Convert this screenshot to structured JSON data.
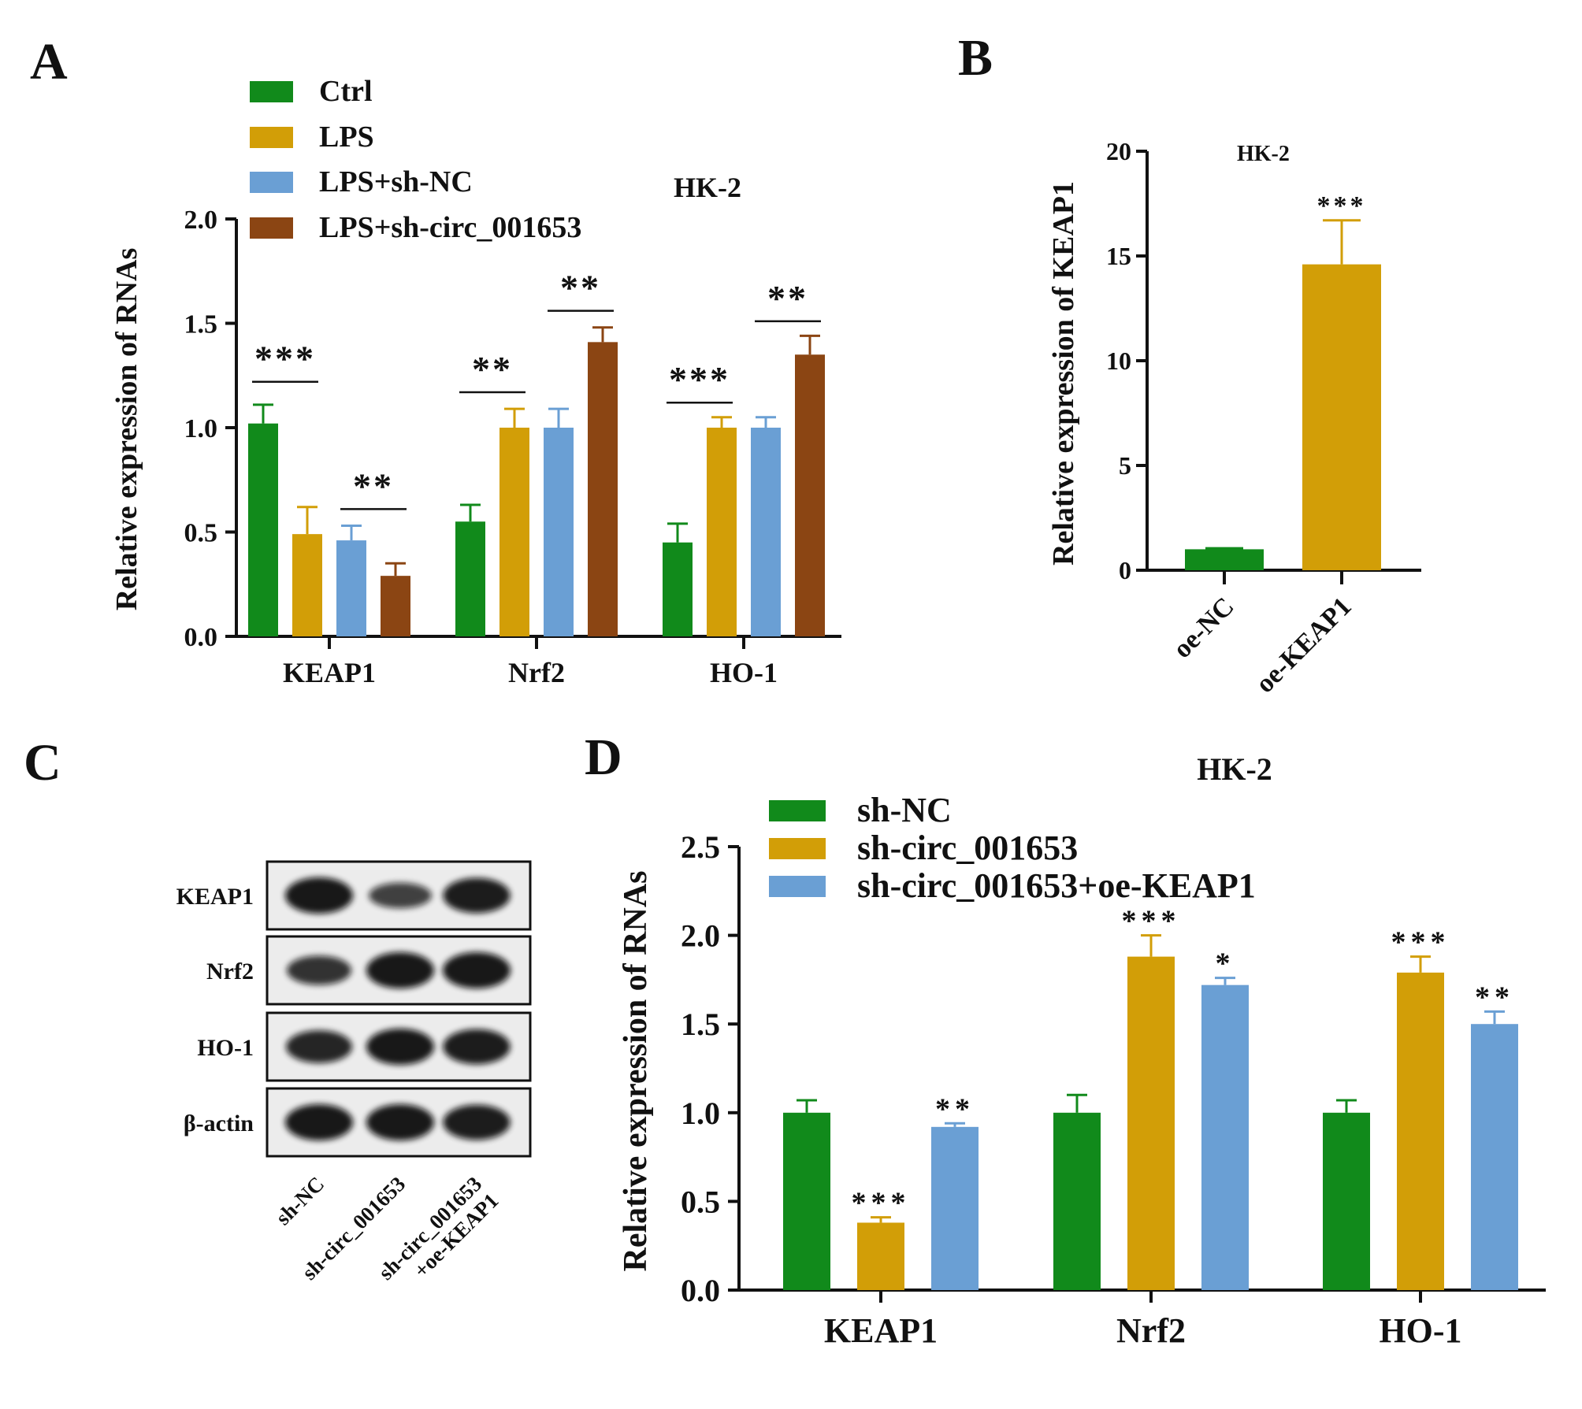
{
  "colors": {
    "ctrl": "#118A1B",
    "lps": "#D29E07",
    "shnc_blue": "#6A9FD4",
    "brown": "#8B4513",
    "axis": "#111111"
  },
  "panels": {
    "a": {
      "letter": "A"
    },
    "b": {
      "letter": "B"
    },
    "c": {
      "letter": "C"
    },
    "d": {
      "letter": "D"
    }
  },
  "chart_data": [
    {
      "panel": "A",
      "type": "bar",
      "title": "HK-2",
      "ylabel": "Relative expression of RNAs",
      "xlabel": "",
      "ylim": [
        0,
        2.0
      ],
      "yticks": [
        "0.0",
        "0.5",
        "1.0",
        "1.5",
        "2.0"
      ],
      "categories": [
        "KEAP1",
        "Nrf2",
        "HO-1"
      ],
      "legend_position": "top-left",
      "series": [
        {
          "name": "Ctrl",
          "color": "#118A1B",
          "values": [
            1.02,
            0.55,
            0.45
          ],
          "errors": [
            0.09,
            0.08,
            0.09
          ]
        },
        {
          "name": "LPS",
          "color": "#D29E07",
          "values": [
            0.49,
            1.0,
            1.0
          ],
          "errors": [
            0.13,
            0.09,
            0.05
          ]
        },
        {
          "name": "LPS+sh-NC",
          "color": "#6A9FD4",
          "values": [
            0.46,
            1.0,
            1.0
          ],
          "errors": [
            0.07,
            0.09,
            0.05
          ]
        },
        {
          "name": "LPS+sh-circ_001653",
          "color": "#8B4513",
          "values": [
            0.29,
            1.41,
            1.35
          ],
          "errors": [
            0.06,
            0.07,
            0.09
          ]
        }
      ],
      "significance": [
        {
          "category": 0,
          "from": 0,
          "to": 1,
          "label": "***",
          "level": 1.22
        },
        {
          "category": 0,
          "from": 2,
          "to": 3,
          "label": "**",
          "level": 0.61
        },
        {
          "category": 1,
          "from": 0,
          "to": 1,
          "label": "**",
          "level": 1.17
        },
        {
          "category": 1,
          "from": 2,
          "to": 3,
          "label": "**",
          "level": 1.56
        },
        {
          "category": 2,
          "from": 0,
          "to": 1,
          "label": "***",
          "level": 1.12
        },
        {
          "category": 2,
          "from": 2,
          "to": 3,
          "label": "**",
          "level": 1.51
        }
      ]
    },
    {
      "panel": "B",
      "type": "bar",
      "title": "HK-2",
      "ylabel": "Relative expression of KEAP1",
      "xlabel": "",
      "ylim": [
        0,
        20
      ],
      "yticks": [
        "0",
        "5",
        "10",
        "15",
        "20"
      ],
      "categories": [
        "oe-NC",
        "oe-KEAP1"
      ],
      "values": [
        1.0,
        14.6
      ],
      "errors": [
        0.05,
        2.1
      ],
      "colors": [
        "#118A1B",
        "#D29E07"
      ],
      "significance": [
        {
          "bar": 1,
          "label": "***"
        }
      ]
    },
    {
      "panel": "D",
      "type": "bar",
      "title": "HK-2",
      "ylabel": "Relative expression of RNAs",
      "xlabel": "",
      "ylim": [
        0,
        2.5
      ],
      "yticks": [
        "0.0",
        "0.5",
        "1.0",
        "1.5",
        "2.0",
        "2.5"
      ],
      "categories": [
        "KEAP1",
        "Nrf2",
        "HO-1"
      ],
      "legend_position": "top",
      "series": [
        {
          "name": "sh-NC",
          "color": "#118A1B",
          "values": [
            1.0,
            1.0,
            1.0
          ],
          "errors": [
            0.07,
            0.1,
            0.07
          ]
        },
        {
          "name": "sh-circ_001653",
          "color": "#D29E07",
          "values": [
            0.38,
            1.88,
            1.79
          ],
          "errors": [
            0.03,
            0.12,
            0.09
          ]
        },
        {
          "name": "sh-circ_001653+oe-KEAP1",
          "color": "#6A9FD4",
          "values": [
            0.92,
            1.72,
            1.5
          ],
          "errors": [
            0.02,
            0.04,
            0.07
          ]
        }
      ],
      "significance": [
        {
          "category": 0,
          "series": 1,
          "label": "***"
        },
        {
          "category": 0,
          "series": 2,
          "label": "**"
        },
        {
          "category": 1,
          "series": 1,
          "label": "***"
        },
        {
          "category": 1,
          "series": 2,
          "label": "*"
        },
        {
          "category": 2,
          "series": 1,
          "label": "***"
        },
        {
          "category": 2,
          "series": 2,
          "label": "**"
        }
      ]
    }
  ],
  "blot": {
    "rows": [
      "KEAP1",
      "Nrf2",
      "HO-1",
      "β-actin"
    ],
    "lanes": [
      "sh-NC",
      "sh-circ_001653",
      "sh-circ_001653\n+oe-KEAP1"
    ],
    "band_intensity": [
      [
        1.0,
        0.55,
        0.95
      ],
      [
        0.7,
        1.0,
        1.0
      ],
      [
        0.85,
        1.0,
        0.95
      ],
      [
        1.0,
        1.0,
        0.95
      ]
    ]
  }
}
